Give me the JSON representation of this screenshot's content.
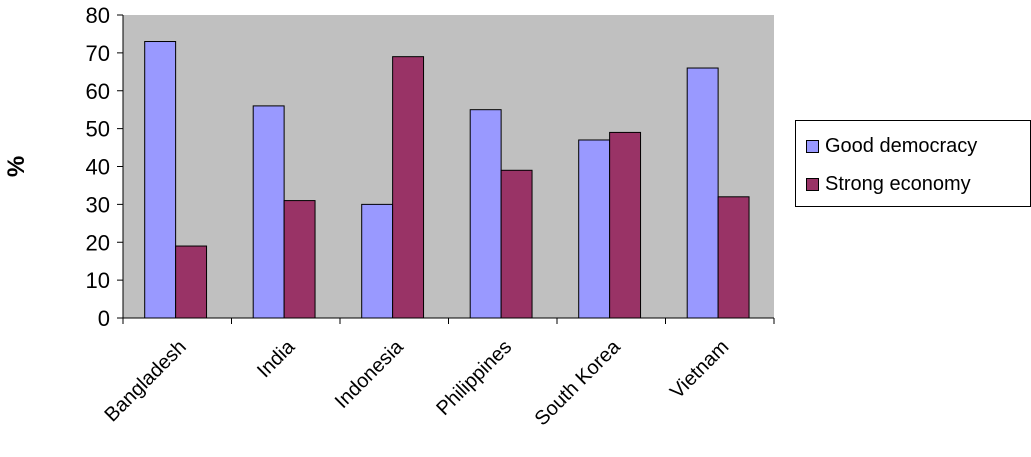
{
  "chart_data": {
    "type": "bar",
    "categories": [
      "Bangladesh",
      "India",
      "Indonesia",
      "Philippines",
      "South Korea",
      "Vietnam"
    ],
    "series": [
      {
        "name": "Good democracy",
        "values": [
          73,
          56,
          30,
          55,
          47,
          66
        ],
        "color": "#9999FF"
      },
      {
        "name": "Strong economy",
        "values": [
          19,
          31,
          69,
          39,
          49,
          32
        ],
        "color": "#993366"
      }
    ],
    "title": "",
    "xlabel": "",
    "ylabel": "%",
    "ylim": [
      0,
      80
    ],
    "yticks": [
      "0",
      "10",
      "20",
      "30",
      "40",
      "50",
      "60",
      "70",
      "80"
    ],
    "plot_background": "#C0C0C0",
    "grid": false,
    "legend_position": "right"
  }
}
